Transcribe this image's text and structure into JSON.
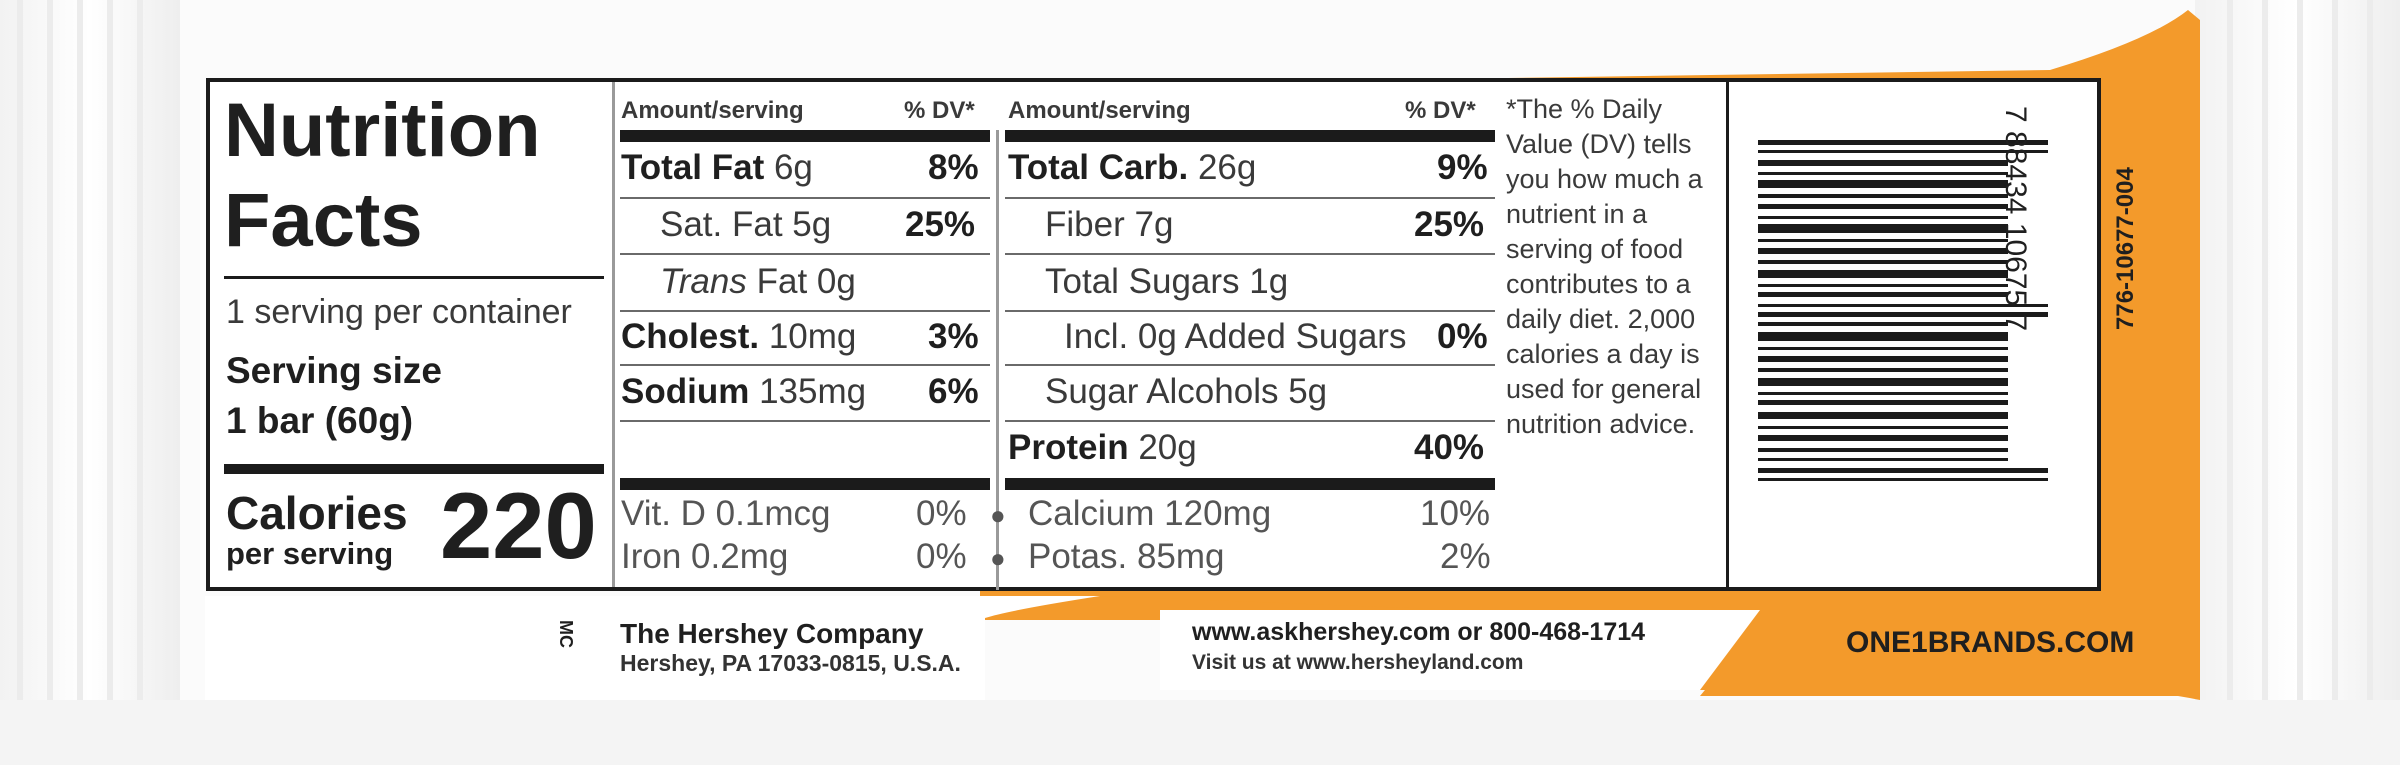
{
  "label": {
    "title_line1": "Nutrition",
    "title_line2": "Facts",
    "servings_per_container": "1 serving per container",
    "serving_size_label": "Serving size",
    "serving_size_value": "1 bar (60g)",
    "calories_label": "Calories",
    "calories_sublabel": "per serving",
    "calories_value": "220",
    "headers": {
      "amount_left": "Amount/serving",
      "dv_left": "% DV*",
      "amount_right": "Amount/serving",
      "dv_right": "% DV*"
    },
    "left_rows": [
      {
        "name": "Total Fat",
        "amount": "6g",
        "dv": "8%"
      },
      {
        "name": "Sat. Fat",
        "amount": "5g",
        "dv": "25%"
      },
      {
        "name": "Trans",
        "amount": "Fat 0g",
        "dv": ""
      },
      {
        "name": "Cholest.",
        "amount": "10mg",
        "dv": "3%"
      },
      {
        "name": "Sodium",
        "amount": "135mg",
        "dv": "6%"
      }
    ],
    "right_rows": [
      {
        "name": "Total Carb.",
        "amount": "26g",
        "dv": "9%"
      },
      {
        "name": "Fiber",
        "amount": "7g",
        "dv": "25%"
      },
      {
        "name": "Total Sugars",
        "amount": "1g",
        "dv": ""
      },
      {
        "name": "Incl. 0g Added Sugars",
        "amount": "",
        "dv": "0%"
      },
      {
        "name": "Sugar Alcohols",
        "amount": "5g",
        "dv": ""
      },
      {
        "name": "Protein",
        "amount": "20g",
        "dv": "40%"
      }
    ],
    "micronutrients": [
      {
        "name": "Vit. D 0.1mcg",
        "dv": "0%"
      },
      {
        "name": "Calcium 120mg",
        "dv": "10%"
      },
      {
        "name": "Iron 0.2mg",
        "dv": "0%"
      },
      {
        "name": "Potas. 85mg",
        "dv": "2%"
      }
    ],
    "dv_footnote": "*The % Daily Value (DV) tells you how much a nutrient in a serving of food contributes to a daily diet. 2,000 calories a day is used for general nutrition advice."
  },
  "barcode": {
    "digits": "7 88434 10675 7",
    "side_code": "776-10677-004"
  },
  "footer": {
    "company": "The Hershey Company",
    "address": "Hershey, PA 17033-0815, U.S.A.",
    "contact": "www.askhershey.com or 800-468-1714",
    "visit": "Visit us at www.hersheyland.com",
    "brand_site": "ONE1BRANDS.COM",
    "trademark": "MC"
  },
  "colors": {
    "brand_orange": "#f39a2b",
    "ink": "#1b1b1b"
  }
}
